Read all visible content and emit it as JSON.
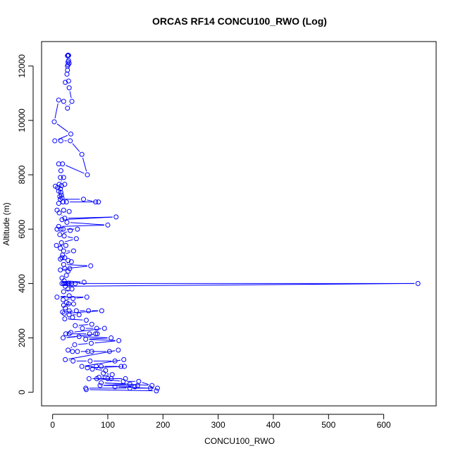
{
  "chart_data": {
    "type": "line",
    "title": "ORCAS RF14 CONCU100_RWO (Log)",
    "xlabel": "CONCU100_RWO",
    "ylabel": "Altitude (m)",
    "xlim": [
      -20,
      695
    ],
    "ylim": [
      -500,
      12900
    ],
    "x_ticks": [
      0,
      100,
      200,
      300,
      400,
      500,
      600
    ],
    "y_ticks": [
      0,
      2000,
      4000,
      6000,
      8000,
      10000,
      12000
    ],
    "grid": false,
    "legend": "none",
    "color": "#0000ff",
    "marker": "open-circle",
    "series": [
      {
        "values": [
          [
            28,
            12400
          ],
          [
            29,
            12390
          ],
          [
            27,
            12380
          ],
          [
            29,
            12200
          ],
          [
            28,
            12150
          ],
          [
            30,
            12100
          ],
          [
            28,
            12050
          ],
          [
            27,
            12000
          ],
          [
            27,
            11850
          ],
          [
            26,
            11700
          ],
          [
            29,
            11450
          ],
          [
            23,
            11400
          ],
          [
            30,
            11200
          ],
          [
            35,
            10700
          ],
          [
            27,
            10450
          ],
          [
            20,
            10700
          ],
          [
            11,
            10750
          ],
          [
            3,
            9950
          ],
          [
            33,
            9500
          ],
          [
            4,
            9250
          ],
          [
            15,
            9250
          ],
          [
            32,
            9250
          ],
          [
            53,
            8750
          ],
          [
            63,
            8000
          ],
          [
            18,
            8400
          ],
          [
            11,
            8400
          ],
          [
            15,
            8150
          ],
          [
            14,
            7900
          ],
          [
            20,
            7900
          ],
          [
            12,
            7650
          ],
          [
            22,
            7650
          ],
          [
            16,
            7600
          ],
          [
            5,
            7580
          ],
          [
            9,
            7530
          ],
          [
            14,
            7480
          ],
          [
            11,
            7400
          ],
          [
            15,
            7350
          ],
          [
            16,
            7250
          ],
          [
            13,
            7200
          ],
          [
            17,
            7150
          ],
          [
            14,
            7100
          ],
          [
            56,
            7100
          ],
          [
            78,
            7000
          ],
          [
            83,
            7000
          ],
          [
            25,
            7000
          ],
          [
            19,
            7000
          ],
          [
            11,
            6950
          ],
          [
            8,
            6700
          ],
          [
            20,
            6700
          ],
          [
            30,
            6650
          ],
          [
            12,
            6600
          ],
          [
            22,
            6400
          ],
          [
            115,
            6450
          ],
          [
            17,
            6350
          ],
          [
            26,
            6250
          ],
          [
            100,
            6150
          ],
          [
            11,
            6100
          ],
          [
            8,
            6000
          ],
          [
            15,
            6000
          ],
          [
            19,
            6000
          ],
          [
            45,
            6000
          ],
          [
            32,
            5950
          ],
          [
            13,
            5800
          ],
          [
            21,
            5750
          ],
          [
            43,
            5650
          ],
          [
            16,
            5500
          ],
          [
            7,
            5400
          ],
          [
            24,
            5400
          ],
          [
            14,
            5300
          ],
          [
            20,
            5200
          ],
          [
            38,
            5200
          ],
          [
            18,
            5050
          ],
          [
            17,
            4950
          ],
          [
            22,
            4950
          ],
          [
            14,
            4900
          ],
          [
            28,
            4850
          ],
          [
            34,
            4800
          ],
          [
            20,
            4700
          ],
          [
            69,
            4650
          ],
          [
            22,
            4550
          ],
          [
            14,
            4500
          ],
          [
            31,
            4550
          ],
          [
            28,
            4450
          ],
          [
            25,
            4300
          ],
          [
            17,
            4200
          ],
          [
            21,
            4100
          ],
          [
            57,
            4050
          ],
          [
            17,
            4000
          ],
          [
            20,
            4000
          ],
          [
            22,
            4000
          ],
          [
            25,
            4000
          ],
          [
            28,
            4000
          ],
          [
            30,
            4000
          ],
          [
            34,
            4000
          ],
          [
            41,
            4000
          ],
          [
            662,
            4000
          ],
          [
            23,
            3900
          ],
          [
            28,
            3800
          ],
          [
            35,
            3800
          ],
          [
            20,
            3700
          ],
          [
            30,
            3550
          ],
          [
            8,
            3500
          ],
          [
            62,
            3500
          ],
          [
            37,
            3450
          ],
          [
            19,
            3400
          ],
          [
            25,
            3300
          ],
          [
            29,
            3250
          ],
          [
            38,
            3250
          ],
          [
            20,
            3200
          ],
          [
            23,
            3100
          ],
          [
            30,
            3000
          ],
          [
            18,
            2950
          ],
          [
            43,
            3000
          ],
          [
            65,
            3000
          ],
          [
            89,
            3000
          ],
          [
            21,
            2900
          ],
          [
            30,
            2850
          ],
          [
            48,
            2850
          ],
          [
            36,
            2750
          ],
          [
            22,
            2700
          ],
          [
            61,
            2650
          ],
          [
            71,
            2500
          ],
          [
            41,
            2450
          ],
          [
            54,
            2350
          ],
          [
            80,
            2350
          ],
          [
            94,
            2350
          ],
          [
            33,
            2200
          ],
          [
            24,
            2150
          ],
          [
            30,
            2150
          ],
          [
            67,
            2150
          ],
          [
            78,
            2150
          ],
          [
            81,
            2150
          ],
          [
            19,
            2000
          ],
          [
            48,
            2050
          ],
          [
            106,
            2000
          ],
          [
            60,
            1950
          ],
          [
            120,
            1900
          ],
          [
            70,
            1800
          ],
          [
            40,
            1750
          ],
          [
            28,
            1550
          ],
          [
            36,
            1500
          ],
          [
            45,
            1500
          ],
          [
            71,
            1500
          ],
          [
            64,
            1500
          ],
          [
            103,
            1500
          ],
          [
            119,
            1550
          ],
          [
            23,
            1200
          ],
          [
            37,
            1150
          ],
          [
            68,
            1150
          ],
          [
            113,
            1150
          ],
          [
            129,
            1200
          ],
          [
            53,
            950
          ],
          [
            79,
            950
          ],
          [
            88,
            950
          ],
          [
            124,
            950
          ],
          [
            130,
            950
          ],
          [
            63,
            900
          ],
          [
            72,
            850
          ],
          [
            96,
            800
          ],
          [
            92,
            700
          ],
          [
            108,
            650
          ],
          [
            84,
            550
          ],
          [
            100,
            500
          ],
          [
            106,
            500
          ],
          [
            132,
            500
          ],
          [
            66,
            500
          ],
          [
            80,
            500
          ],
          [
            128,
            400
          ],
          [
            156,
            400
          ],
          [
            180,
            250
          ],
          [
            88,
            350
          ],
          [
            140,
            300
          ],
          [
            86,
            250
          ],
          [
            154,
            250
          ],
          [
            149,
            200
          ],
          [
            113,
            200
          ],
          [
            177,
            150
          ],
          [
            190,
            150
          ],
          [
            140,
            150
          ],
          [
            60,
            150
          ],
          [
            61,
            100
          ],
          [
            188,
            50
          ]
        ]
      }
    ]
  }
}
